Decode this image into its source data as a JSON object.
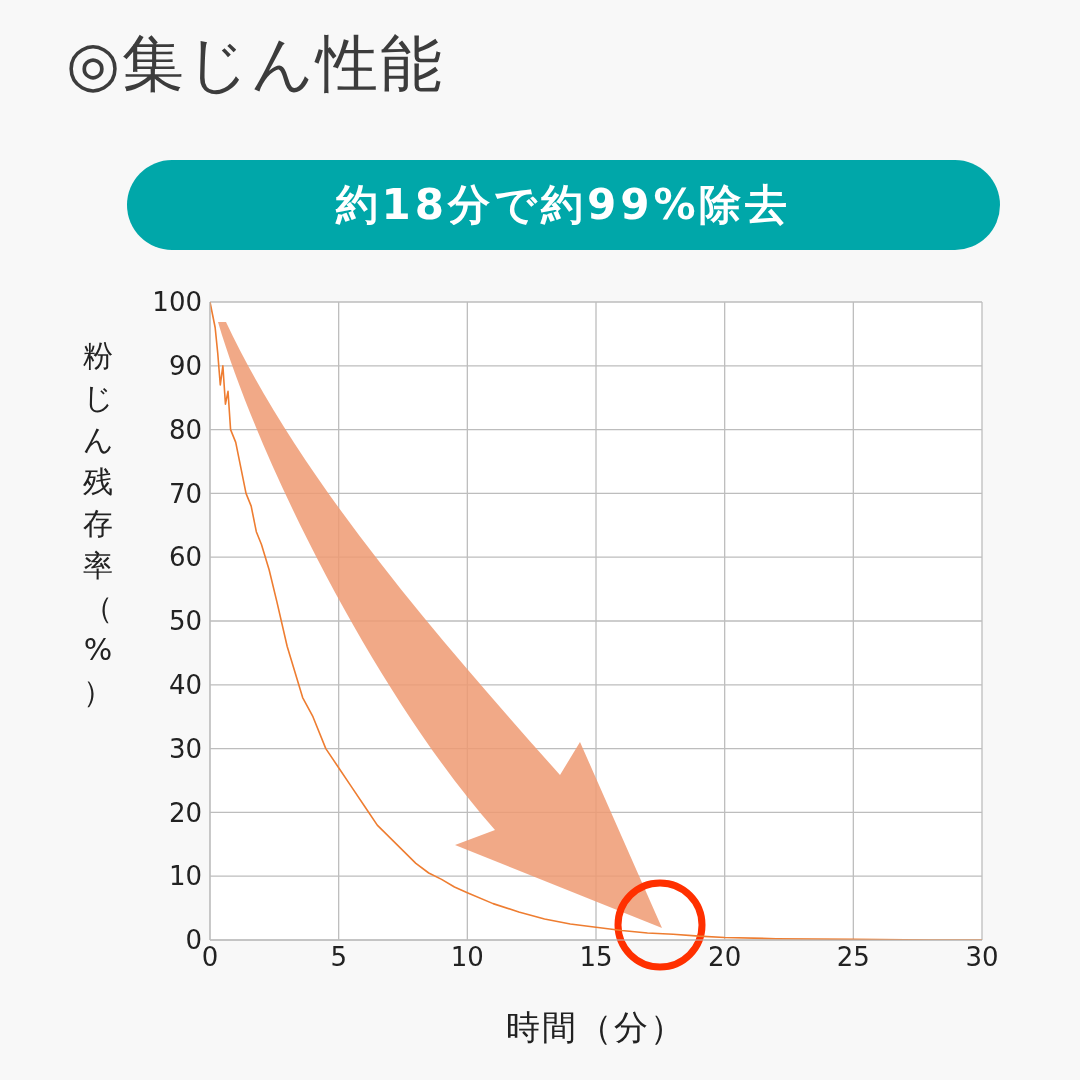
{
  "chart_data": {
    "type": "line",
    "title": "◎集じん性能",
    "subtitle": "約18分で約99%除去",
    "xlabel": "時間（分）",
    "ylabel": "粉じん残存率（%）",
    "x": [
      0,
      0.1,
      0.2,
      0.3,
      0.4,
      0.5,
      0.6,
      0.7,
      0.8,
      1,
      1.2,
      1.4,
      1.6,
      1.8,
      2,
      2.3,
      2.6,
      3,
      3.3,
      3.6,
      4,
      4.5,
      5,
      5.5,
      6,
      6.5,
      7,
      7.5,
      8,
      8.5,
      9,
      9.5,
      10,
      11,
      12,
      13,
      14,
      15,
      16,
      17,
      18,
      19,
      20,
      22,
      25,
      28,
      30
    ],
    "series": [
      {
        "color": "#ee7d31",
        "values": [
          100,
          98,
          96,
          92,
          87,
          90,
          84,
          86,
          80,
          78,
          74,
          70,
          68,
          64,
          62,
          58,
          53,
          46,
          42,
          38,
          35,
          30,
          27,
          24,
          21,
          18,
          16,
          14,
          12,
          10.5,
          9.5,
          8.3,
          7.4,
          5.7,
          4.4,
          3.3,
          2.5,
          2,
          1.5,
          1.1,
          0.9,
          0.6,
          0.4,
          0.2,
          0.1,
          0,
          0
        ]
      }
    ],
    "xlim": [
      0,
      30
    ],
    "xticks": [
      0,
      5,
      10,
      15,
      20,
      25,
      30
    ],
    "ylim": [
      0,
      100
    ],
    "yticks": [
      0,
      10,
      20,
      30,
      40,
      50,
      60,
      70,
      80,
      90,
      100
    ],
    "grid": true,
    "legend": false,
    "marker": "none",
    "line_style": "solid"
  }
}
